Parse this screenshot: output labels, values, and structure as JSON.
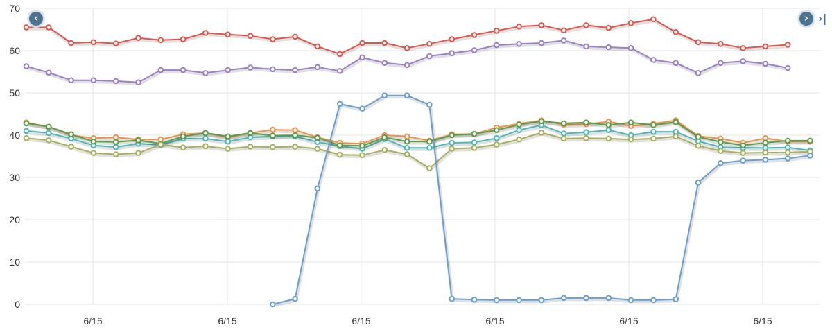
{
  "chart_data": {
    "type": "line",
    "title": "",
    "xlabel": "",
    "ylabel": "",
    "ylim": [
      0,
      70
    ],
    "yticks": [
      0,
      10,
      20,
      30,
      40,
      50,
      60,
      70
    ],
    "xtick_labels": [
      "6/15",
      "6/15",
      "6/15",
      "6/15",
      "6/15",
      "6/15"
    ],
    "grid": true,
    "legend": "none",
    "series": [
      {
        "color": "#e0554b",
        "values": [
          65.5,
          65.5,
          61.8,
          62.0,
          61.7,
          63.0,
          62.5,
          62.7,
          64.2,
          63.8,
          63.5,
          62.7,
          63.3,
          61.0,
          59.2,
          61.8,
          61.8,
          60.6,
          61.6,
          62.7,
          63.7,
          64.7,
          65.7,
          66.0,
          64.8,
          66.0,
          65.4,
          66.5,
          67.4,
          64.4,
          62.0,
          61.6,
          60.6,
          61.0,
          61.4
        ]
      },
      {
        "color": "#9b7fc7",
        "values": [
          56.3,
          54.8,
          53.0,
          53.0,
          52.8,
          52.5,
          55.4,
          55.4,
          54.7,
          55.4,
          56.0,
          55.6,
          55.4,
          56.1,
          55.2,
          58.4,
          57.1,
          56.6,
          58.7,
          59.4,
          60.1,
          61.3,
          61.6,
          61.8,
          62.4,
          61.0,
          60.8,
          60.6,
          57.8,
          57.1,
          54.7,
          57.1,
          57.5,
          56.9,
          55.9
        ]
      },
      {
        "color": "#f0914a",
        "values": [
          43.0,
          42.0,
          40.0,
          39.3,
          39.5,
          39.0,
          39.0,
          40.2,
          40.5,
          39.5,
          40.5,
          41.3,
          41.2,
          39.5,
          38.2,
          38.0,
          40.0,
          39.7,
          38.7,
          40.2,
          40.3,
          41.8,
          42.7,
          43.5,
          42.5,
          42.6,
          43.2,
          42.2,
          42.7,
          43.5,
          39.8,
          39.2,
          38.2,
          39.3,
          38.5,
          38.5
        ]
      },
      {
        "color": "#4db8b8",
        "values": [
          41.0,
          40.5,
          39.2,
          37.6,
          37.2,
          38.0,
          37.7,
          39.2,
          39.2,
          38.5,
          39.5,
          39.7,
          39.7,
          38.4,
          37.4,
          36.8,
          39.1,
          37.0,
          37.0,
          38.2,
          38.3,
          39.3,
          41.2,
          42.4,
          40.4,
          40.7,
          41.2,
          40.0,
          40.8,
          40.8,
          38.6,
          37.2,
          37.0,
          37.0,
          37.1,
          36.4
        ]
      },
      {
        "color": "#5c9c46",
        "values": [
          42.8,
          42.0,
          40.2,
          38.5,
          38.4,
          38.8,
          38.0,
          39.7,
          40.5,
          39.7,
          40.5,
          39.9,
          40.0,
          39.4,
          37.6,
          37.5,
          39.5,
          38.5,
          38.5,
          40.0,
          40.3,
          41.2,
          42.5,
          43.3,
          42.8,
          43.0,
          42.4,
          43.0,
          42.4,
          43.1,
          39.6,
          38.4,
          37.6,
          38.2,
          38.7,
          38.7
        ]
      },
      {
        "color": "#a8b05c",
        "values": [
          39.3,
          38.8,
          37.3,
          35.8,
          35.5,
          35.8,
          37.8,
          37.1,
          37.4,
          36.8,
          37.3,
          37.2,
          37.3,
          36.8,
          35.4,
          35.3,
          36.5,
          35.5,
          32.2,
          36.8,
          37.0,
          37.8,
          39.0,
          40.6,
          39.2,
          39.3,
          39.2,
          39.0,
          39.2,
          39.7,
          37.5,
          36.3,
          35.8,
          35.9,
          35.9,
          36.1
        ]
      },
      {
        "color": "#6a9ecf",
        "values": [
          null,
          null,
          null,
          null,
          null,
          null,
          null,
          null,
          null,
          null,
          null,
          0.0,
          1.3,
          27.4,
          47.4,
          46.3,
          49.4,
          49.4,
          47.2,
          1.3,
          1.1,
          1.0,
          1.0,
          1.0,
          1.5,
          1.5,
          1.5,
          1.0,
          1.0,
          1.2,
          28.8,
          33.4,
          34.0,
          34.2,
          34.5,
          35.2
        ]
      }
    ]
  },
  "nav": {
    "prev_icon": "chevron-left-icon",
    "next_icon": "chevron-right-icon",
    "last_icon": "skip-to-end-icon",
    "prev_glyph": "‹",
    "next_glyph": "›",
    "last_glyph": "›|"
  }
}
